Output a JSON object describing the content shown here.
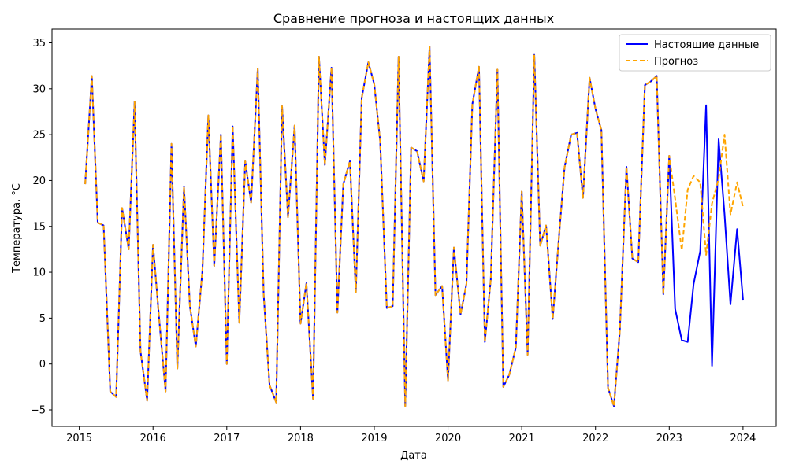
{
  "chart_data": {
    "type": "line",
    "title": "Сравнение прогноза и настоящих данных",
    "xlabel": "Дата",
    "ylabel": "Температура, °C",
    "xlim": [
      2014.63,
      2024.45
    ],
    "ylim": [
      -6.8,
      36.5
    ],
    "x_ticks": [
      2015,
      2016,
      2017,
      2018,
      2019,
      2020,
      2021,
      2022,
      2023,
      2024
    ],
    "x_tick_labels": [
      "2015",
      "2016",
      "2017",
      "2018",
      "2019",
      "2020",
      "2021",
      "2022",
      "2023",
      "2024"
    ],
    "y_ticks": [
      -5,
      0,
      5,
      10,
      15,
      20,
      25,
      30,
      35
    ],
    "y_tick_labels": [
      "−5",
      "0",
      "5",
      "10",
      "15",
      "20",
      "25",
      "30",
      "35"
    ],
    "grid": false,
    "legend_position": "top-right",
    "series": [
      {
        "name": "Настоящие данные",
        "color": "#0000ff",
        "style": "solid",
        "x": [
          2015.08,
          2015.17,
          2015.25,
          2015.33,
          2015.42,
          2015.5,
          2015.58,
          2015.67,
          2015.75,
          2015.83,
          2015.92,
          2016.0,
          2016.08,
          2016.17,
          2016.25,
          2016.33,
          2016.42,
          2016.5,
          2016.58,
          2016.67,
          2016.75,
          2016.83,
          2016.92,
          2017.0,
          2017.08,
          2017.17,
          2017.25,
          2017.33,
          2017.42,
          2017.5,
          2017.58,
          2017.67,
          2017.75,
          2017.83,
          2017.92,
          2018.0,
          2018.08,
          2018.17,
          2018.25,
          2018.33,
          2018.42,
          2018.5,
          2018.58,
          2018.67,
          2018.75,
          2018.83,
          2018.92,
          2019.0,
          2019.08,
          2019.17,
          2019.25,
          2019.33,
          2019.42,
          2019.5,
          2019.58,
          2019.67,
          2019.75,
          2019.83,
          2019.92,
          2020.0,
          2020.08,
          2020.17,
          2020.25,
          2020.33,
          2020.42,
          2020.5,
          2020.58,
          2020.67,
          2020.75,
          2020.83,
          2020.92,
          2021.0,
          2021.08,
          2021.17,
          2021.25,
          2021.33,
          2021.42,
          2021.5,
          2021.58,
          2021.67,
          2021.75,
          2021.83,
          2021.92,
          2022.0,
          2022.08,
          2022.17,
          2022.25,
          2022.33,
          2022.42,
          2022.5,
          2022.58,
          2022.67,
          2022.75,
          2022.83,
          2022.92,
          2023.0,
          2023.08,
          2023.17,
          2023.25,
          2023.33,
          2023.42,
          2023.5,
          2023.58,
          2023.67,
          2023.75,
          2023.83,
          2023.92,
          2024.0
        ],
        "values": [
          19.6,
          31.4,
          15.4,
          15.1,
          -3.0,
          -3.6,
          17.0,
          12.5,
          28.6,
          1.4,
          -4.0,
          13.0,
          5.2,
          -3.0,
          24.0,
          -0.5,
          19.3,
          6.3,
          1.9,
          10.2,
          27.1,
          10.7,
          25.0,
          0.0,
          25.9,
          4.5,
          22.1,
          17.6,
          32.2,
          7.6,
          -2.3,
          -4.2,
          28.1,
          16.0,
          26.0,
          4.4,
          8.8,
          -3.8,
          33.5,
          21.7,
          32.3,
          5.6,
          19.6,
          22.1,
          7.8,
          29.0,
          32.9,
          30.5,
          24.3,
          6.1,
          6.3,
          33.5,
          -4.6,
          23.6,
          23.2,
          19.9,
          34.6,
          7.5,
          8.5,
          -1.8,
          12.7,
          5.4,
          8.7,
          28.3,
          32.4,
          2.4,
          9.2,
          32.1,
          -2.5,
          -1.2,
          1.8,
          18.8,
          1.0,
          33.7,
          12.9,
          15.1,
          4.9,
          13.4,
          21.4,
          25.0,
          25.2,
          18.1,
          31.2,
          27.8,
          25.5,
          -2.6,
          -4.6,
          3.6,
          21.5,
          11.5,
          11.1,
          30.4,
          30.8,
          31.4,
          7.6,
          22.7,
          6.0,
          2.6,
          2.4,
          8.7,
          12.3,
          28.2,
          -0.2,
          24.5,
          16.3,
          6.5,
          14.7,
          7.0
        ]
      },
      {
        "name": "Прогноз",
        "color": "#ffa500",
        "style": "dashed",
        "x": [
          2015.08,
          2015.17,
          2015.25,
          2015.33,
          2015.42,
          2015.5,
          2015.58,
          2015.67,
          2015.75,
          2015.83,
          2015.92,
          2016.0,
          2016.08,
          2016.17,
          2016.25,
          2016.33,
          2016.42,
          2016.5,
          2016.58,
          2016.67,
          2016.75,
          2016.83,
          2016.92,
          2017.0,
          2017.08,
          2017.17,
          2017.25,
          2017.33,
          2017.42,
          2017.5,
          2017.58,
          2017.67,
          2017.75,
          2017.83,
          2017.92,
          2018.0,
          2018.08,
          2018.17,
          2018.25,
          2018.33,
          2018.42,
          2018.5,
          2018.58,
          2018.67,
          2018.75,
          2018.83,
          2018.92,
          2019.0,
          2019.08,
          2019.17,
          2019.25,
          2019.33,
          2019.42,
          2019.5,
          2019.58,
          2019.67,
          2019.75,
          2019.83,
          2019.92,
          2020.0,
          2020.08,
          2020.17,
          2020.25,
          2020.33,
          2020.42,
          2020.5,
          2020.58,
          2020.67,
          2020.75,
          2020.83,
          2020.92,
          2021.0,
          2021.08,
          2021.17,
          2021.25,
          2021.33,
          2021.42,
          2021.5,
          2021.58,
          2021.67,
          2021.75,
          2021.83,
          2021.92,
          2022.0,
          2022.08,
          2022.17,
          2022.25,
          2022.33,
          2022.42,
          2022.5,
          2022.58,
          2022.67,
          2022.75,
          2022.83,
          2022.92,
          2023.0,
          2023.08,
          2023.17,
          2023.25,
          2023.33,
          2023.42,
          2023.5,
          2023.58,
          2023.67,
          2023.75,
          2023.83,
          2023.92,
          2024.0
        ],
        "values": [
          19.6,
          31.4,
          15.4,
          15.1,
          -3.0,
          -3.6,
          17.0,
          12.5,
          28.6,
          1.4,
          -4.0,
          13.0,
          5.2,
          -3.0,
          24.0,
          -0.5,
          19.3,
          6.3,
          1.9,
          10.2,
          27.1,
          10.7,
          25.0,
          0.0,
          25.9,
          4.5,
          22.1,
          17.6,
          32.2,
          7.6,
          -2.3,
          -4.2,
          28.1,
          16.0,
          26.0,
          4.4,
          8.8,
          -3.8,
          33.5,
          21.7,
          32.3,
          5.6,
          19.6,
          22.1,
          7.8,
          29.0,
          32.9,
          30.5,
          24.3,
          6.1,
          6.3,
          33.5,
          -4.6,
          23.6,
          23.2,
          19.9,
          34.6,
          7.5,
          8.5,
          -1.8,
          12.7,
          5.4,
          8.7,
          28.3,
          32.4,
          2.4,
          9.2,
          32.1,
          -2.5,
          -1.2,
          1.8,
          18.8,
          1.0,
          33.7,
          12.9,
          15.1,
          4.9,
          13.4,
          21.4,
          25.0,
          25.2,
          18.1,
          31.2,
          27.8,
          25.5,
          -2.6,
          -4.6,
          3.6,
          21.5,
          11.5,
          11.1,
          30.4,
          30.8,
          31.4,
          7.6,
          22.7,
          18.0,
          12.4,
          19.0,
          20.5,
          19.8,
          11.9,
          17.5,
          20.2,
          25.0,
          16.3,
          19.8,
          17.1
        ]
      }
    ]
  }
}
